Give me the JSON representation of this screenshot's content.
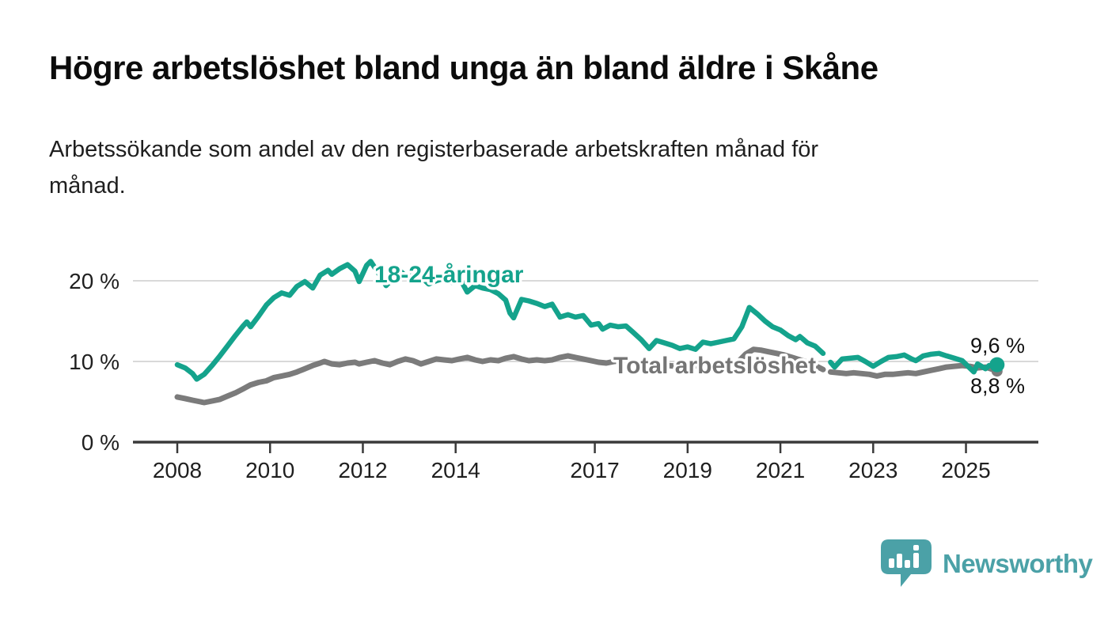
{
  "page": {
    "title": "Högre arbetslöshet bland unga än bland äldre i Skåne",
    "subtitle_lines": [
      "Arbetssökande som andel av den registerbaserade arbetskraften månad för",
      "månad."
    ]
  },
  "branding": {
    "logo_text": "Newsworthy",
    "logo_icon": "bar-chart-speech-bubble-icon",
    "logo_color": "#4ba1a7"
  },
  "colors": {
    "young_line": "#14a38c",
    "total_line": "#7b7b7b",
    "gridline": "#d9d9d9",
    "axis": "#3a3a3a",
    "text": "#1f1f1f"
  },
  "chart_data": {
    "type": "line",
    "title": "Högre arbetslöshet bland unga än bland äldre i Skåne",
    "xlabel": "",
    "ylabel": "",
    "x_axis": {
      "ticks": [
        2008,
        2010,
        2012,
        2014,
        2017,
        2019,
        2021,
        2023,
        2025
      ],
      "range": [
        2007.0,
        2026.6
      ]
    },
    "y_axis": {
      "ticks": [
        {
          "value": 0,
          "label": "0 %"
        },
        {
          "value": 10,
          "label": "10 %"
        },
        {
          "value": 20,
          "label": "20 %"
        }
      ],
      "range": [
        0,
        24.5
      ]
    },
    "grid": "horizontal-only",
    "legend_position": "inline-labels",
    "note_gap": "both series have a data break in early 2022",
    "series": [
      {
        "id": "young",
        "name": "18-24-åringar",
        "color": "#14a38c",
        "width": 6.5,
        "end_label": "9,6 %",
        "end_value": 9.6,
        "end_dot": 9.5,
        "segments": [
          [
            [
              2008.0,
              9.6
            ],
            [
              2008.17,
              9.2
            ],
            [
              2008.33,
              8.5
            ],
            [
              2008.42,
              7.8
            ],
            [
              2008.58,
              8.4
            ],
            [
              2008.75,
              9.5
            ],
            [
              2008.92,
              10.7
            ],
            [
              2009.08,
              11.9
            ],
            [
              2009.25,
              13.2
            ],
            [
              2009.42,
              14.4
            ],
            [
              2009.5,
              14.9
            ],
            [
              2009.58,
              14.3
            ],
            [
              2009.75,
              15.6
            ],
            [
              2009.92,
              17.0
            ],
            [
              2010.08,
              17.9
            ],
            [
              2010.25,
              18.5
            ],
            [
              2010.42,
              18.2
            ],
            [
              2010.58,
              19.3
            ],
            [
              2010.75,
              19.9
            ],
            [
              2010.92,
              19.1
            ],
            [
              2011.08,
              20.7
            ],
            [
              2011.25,
              21.3
            ],
            [
              2011.33,
              20.8
            ],
            [
              2011.5,
              21.5
            ],
            [
              2011.67,
              22.0
            ],
            [
              2011.83,
              21.2
            ],
            [
              2011.92,
              19.9
            ],
            [
              2012.08,
              21.9
            ],
            [
              2012.17,
              22.4
            ],
            [
              2012.33,
              21.0
            ],
            [
              2012.5,
              19.4
            ],
            [
              2012.67,
              20.4
            ],
            [
              2012.83,
              21.1
            ],
            [
              2012.92,
              20.6
            ],
            [
              2013.08,
              20.9
            ],
            [
              2013.25,
              20.5
            ],
            [
              2013.42,
              19.6
            ],
            [
              2013.58,
              20.0
            ],
            [
              2013.75,
              20.3
            ],
            [
              2013.92,
              19.8
            ],
            [
              2014.08,
              20.4
            ],
            [
              2014.25,
              18.6
            ],
            [
              2014.42,
              19.4
            ],
            [
              2014.58,
              19.1
            ],
            [
              2014.75,
              18.9
            ],
            [
              2014.92,
              18.4
            ],
            [
              2015.08,
              17.6
            ],
            [
              2015.17,
              16.0
            ],
            [
              2015.25,
              15.4
            ],
            [
              2015.42,
              17.7
            ],
            [
              2015.58,
              17.5
            ],
            [
              2015.75,
              17.2
            ],
            [
              2015.92,
              16.8
            ],
            [
              2016.08,
              17.1
            ],
            [
              2016.25,
              15.5
            ],
            [
              2016.42,
              15.8
            ],
            [
              2016.58,
              15.5
            ],
            [
              2016.75,
              15.7
            ],
            [
              2016.92,
              14.5
            ],
            [
              2017.08,
              14.7
            ],
            [
              2017.17,
              14.0
            ],
            [
              2017.33,
              14.5
            ],
            [
              2017.5,
              14.3
            ],
            [
              2017.67,
              14.4
            ],
            [
              2017.83,
              13.6
            ],
            [
              2018.0,
              12.7
            ],
            [
              2018.17,
              11.6
            ],
            [
              2018.33,
              12.6
            ],
            [
              2018.5,
              12.3
            ],
            [
              2018.67,
              12.0
            ],
            [
              2018.83,
              11.6
            ],
            [
              2019.0,
              11.8
            ],
            [
              2019.17,
              11.5
            ],
            [
              2019.33,
              12.4
            ],
            [
              2019.5,
              12.2
            ],
            [
              2019.67,
              12.4
            ],
            [
              2019.83,
              12.6
            ],
            [
              2020.0,
              12.8
            ],
            [
              2020.17,
              14.3
            ],
            [
              2020.33,
              16.7
            ],
            [
              2020.5,
              15.9
            ],
            [
              2020.67,
              15.0
            ],
            [
              2020.83,
              14.3
            ],
            [
              2021.0,
              13.9
            ],
            [
              2021.17,
              13.2
            ],
            [
              2021.33,
              12.7
            ],
            [
              2021.42,
              13.1
            ],
            [
              2021.58,
              12.3
            ],
            [
              2021.75,
              11.9
            ],
            [
              2021.92,
              11.0
            ]
          ],
          [
            [
              2022.08,
              9.9
            ],
            [
              2022.17,
              9.3
            ],
            [
              2022.33,
              10.3
            ],
            [
              2022.5,
              10.4
            ],
            [
              2022.67,
              10.5
            ],
            [
              2022.83,
              10.0
            ],
            [
              2023.0,
              9.4
            ],
            [
              2023.17,
              10.0
            ],
            [
              2023.33,
              10.5
            ],
            [
              2023.5,
              10.6
            ],
            [
              2023.67,
              10.8
            ],
            [
              2023.83,
              10.3
            ],
            [
              2023.92,
              10.1
            ],
            [
              2024.08,
              10.7
            ],
            [
              2024.25,
              10.9
            ],
            [
              2024.42,
              11.0
            ],
            [
              2024.58,
              10.7
            ],
            [
              2024.75,
              10.4
            ],
            [
              2024.92,
              10.1
            ],
            [
              2025.08,
              9.2
            ],
            [
              2025.17,
              8.7
            ],
            [
              2025.25,
              9.7
            ],
            [
              2025.42,
              9.1
            ],
            [
              2025.5,
              9.5
            ],
            [
              2025.67,
              9.6
            ]
          ]
        ]
      },
      {
        "id": "total",
        "name": "Total arbetslöshet",
        "color": "#7b7b7b",
        "width": 7,
        "end_label": "8,8 %",
        "end_value": 8.8,
        "end_dot": 7,
        "segments": [
          [
            [
              2008.0,
              5.6
            ],
            [
              2008.17,
              5.4
            ],
            [
              2008.33,
              5.2
            ],
            [
              2008.5,
              5.0
            ],
            [
              2008.58,
              4.9
            ],
            [
              2008.75,
              5.1
            ],
            [
              2008.92,
              5.3
            ],
            [
              2009.08,
              5.7
            ],
            [
              2009.25,
              6.1
            ],
            [
              2009.42,
              6.6
            ],
            [
              2009.58,
              7.1
            ],
            [
              2009.75,
              7.4
            ],
            [
              2009.92,
              7.6
            ],
            [
              2010.08,
              8.0
            ],
            [
              2010.25,
              8.2
            ],
            [
              2010.42,
              8.4
            ],
            [
              2010.58,
              8.7
            ],
            [
              2010.75,
              9.1
            ],
            [
              2010.92,
              9.5
            ],
            [
              2011.08,
              9.8
            ],
            [
              2011.17,
              10.0
            ],
            [
              2011.33,
              9.7
            ],
            [
              2011.5,
              9.6
            ],
            [
              2011.67,
              9.8
            ],
            [
              2011.83,
              9.9
            ],
            [
              2011.92,
              9.7
            ],
            [
              2012.08,
              9.9
            ],
            [
              2012.25,
              10.1
            ],
            [
              2012.42,
              9.8
            ],
            [
              2012.58,
              9.6
            ],
            [
              2012.75,
              10.0
            ],
            [
              2012.92,
              10.3
            ],
            [
              2013.08,
              10.1
            ],
            [
              2013.25,
              9.7
            ],
            [
              2013.42,
              10.0
            ],
            [
              2013.58,
              10.3
            ],
            [
              2013.75,
              10.2
            ],
            [
              2013.92,
              10.1
            ],
            [
              2014.08,
              10.3
            ],
            [
              2014.25,
              10.5
            ],
            [
              2014.42,
              10.2
            ],
            [
              2014.58,
              10.0
            ],
            [
              2014.75,
              10.2
            ],
            [
              2014.92,
              10.1
            ],
            [
              2015.08,
              10.4
            ],
            [
              2015.25,
              10.6
            ],
            [
              2015.42,
              10.3
            ],
            [
              2015.58,
              10.1
            ],
            [
              2015.75,
              10.2
            ],
            [
              2015.92,
              10.1
            ],
            [
              2016.08,
              10.2
            ],
            [
              2016.25,
              10.5
            ],
            [
              2016.42,
              10.7
            ],
            [
              2016.58,
              10.5
            ],
            [
              2016.75,
              10.3
            ],
            [
              2016.92,
              10.1
            ],
            [
              2017.08,
              9.9
            ],
            [
              2017.25,
              9.8
            ],
            [
              2017.42,
              10.0
            ],
            [
              2017.58,
              10.1
            ],
            [
              2017.75,
              10.0
            ],
            [
              2017.92,
              9.8
            ],
            [
              2018.08,
              9.6
            ],
            [
              2018.25,
              9.5
            ],
            [
              2018.42,
              9.6
            ],
            [
              2018.58,
              9.5
            ],
            [
              2018.75,
              9.4
            ],
            [
              2018.92,
              9.3
            ],
            [
              2019.08,
              9.4
            ],
            [
              2019.25,
              9.5
            ],
            [
              2019.42,
              9.6
            ],
            [
              2019.58,
              9.5
            ],
            [
              2019.75,
              9.6
            ],
            [
              2019.92,
              9.7
            ],
            [
              2020.08,
              9.9
            ],
            [
              2020.25,
              10.9
            ],
            [
              2020.42,
              11.5
            ],
            [
              2020.58,
              11.4
            ],
            [
              2020.75,
              11.2
            ],
            [
              2020.92,
              11.0
            ],
            [
              2021.08,
              10.8
            ],
            [
              2021.25,
              10.5
            ],
            [
              2021.42,
              10.2
            ],
            [
              2021.58,
              9.9
            ],
            [
              2021.75,
              9.5
            ],
            [
              2021.92,
              9.0
            ]
          ],
          [
            [
              2022.08,
              8.7
            ],
            [
              2022.25,
              8.6
            ],
            [
              2022.42,
              8.5
            ],
            [
              2022.58,
              8.6
            ],
            [
              2022.75,
              8.5
            ],
            [
              2022.92,
              8.4
            ],
            [
              2023.08,
              8.2
            ],
            [
              2023.25,
              8.4
            ],
            [
              2023.42,
              8.4
            ],
            [
              2023.58,
              8.5
            ],
            [
              2023.75,
              8.6
            ],
            [
              2023.92,
              8.5
            ],
            [
              2024.08,
              8.7
            ],
            [
              2024.25,
              8.9
            ],
            [
              2024.42,
              9.1
            ],
            [
              2024.58,
              9.3
            ],
            [
              2024.75,
              9.4
            ],
            [
              2024.92,
              9.5
            ],
            [
              2025.08,
              9.4
            ],
            [
              2025.25,
              9.2
            ],
            [
              2025.42,
              9.3
            ],
            [
              2025.58,
              9.0
            ],
            [
              2025.67,
              8.8
            ]
          ]
        ]
      }
    ]
  }
}
